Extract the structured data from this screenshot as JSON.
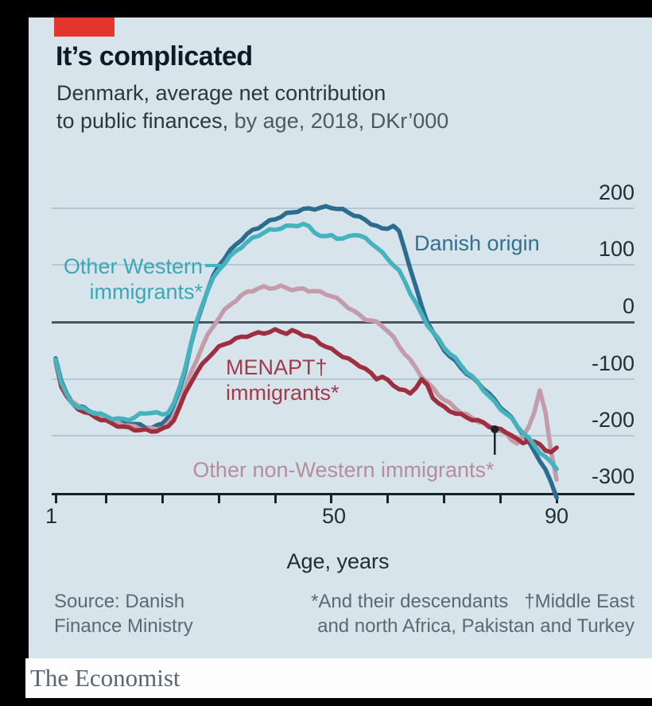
{
  "header": {
    "title": "It’s complicated",
    "subtitle_line1": "Denmark, average net contribution",
    "subtitle_line2_dark": "to public finances,",
    "subtitle_line2_light": " by age, 2018, DKr’000",
    "tag_color": "#e3352b"
  },
  "axis": {
    "y_labels": [
      "200",
      "100",
      "0",
      "-100",
      "-200",
      "-300"
    ],
    "x_labels": [
      "1",
      "50",
      "90"
    ],
    "x_axis_title": "Age, years"
  },
  "labels": {
    "danish": "Danish origin",
    "other_western_l1": "Other Western",
    "other_western_l2": "immigrants*",
    "menapt_l1": "MENAPT†",
    "menapt_l2": "immigrants*",
    "non_western": "Other non-Western immigrants*"
  },
  "footer": {
    "source_line1": "Source: Danish",
    "source_line2": "Finance Ministry",
    "footnote_line1": "*And their descendants   †Middle East",
    "footnote_line2": "and north Africa, Pakistan and Turkey",
    "brand": "The Economist"
  },
  "chart_data": {
    "type": "line",
    "title": "It's complicated",
    "subtitle": "Denmark, average net contribution to public finances, by age, 2018, DKr'000",
    "xlabel": "Age, years",
    "ylabel": "DKr'000",
    "xlim": [
      1,
      90
    ],
    "ylim": [
      -300,
      200
    ],
    "y_ticks": [
      200,
      100,
      0,
      -100,
      -200,
      -300
    ],
    "x_ticks": [
      1,
      10,
      20,
      30,
      40,
      50,
      60,
      70,
      80,
      90
    ],
    "x_tick_labeled": [
      1,
      50,
      90
    ],
    "grid": true,
    "x_start": 1,
    "x_step": 1,
    "series": [
      {
        "id": "danish-origin",
        "name": "Danish origin",
        "color": "#2c6d8f",
        "values": [
          -62,
          -105,
          -128,
          -140,
          -148,
          -152,
          -156,
          -160,
          -164,
          -168,
          -172,
          -174,
          -176,
          -178,
          -180,
          -182,
          -185,
          -186,
          -184,
          -178,
          -166,
          -148,
          -120,
          -85,
          -42,
          -5,
          28,
          56,
          80,
          100,
          113,
          125,
          136,
          146,
          154,
          161,
          167,
          172,
          177,
          182,
          186,
          190,
          193,
          196,
          198,
          199,
          200,
          201,
          202,
          202,
          200,
          197,
          193,
          189,
          184,
          179,
          174,
          169,
          163,
          166,
          170,
          158,
          128,
          95,
          60,
          28,
          2,
          -18,
          -34,
          -48,
          -60,
          -70,
          -80,
          -90,
          -99,
          -107,
          -116,
          -127,
          -138,
          -149,
          -159,
          -170,
          -183,
          -197,
          -212,
          -227,
          -243,
          -261,
          -283,
          -307
        ]
      },
      {
        "id": "other-non-western",
        "name": "Other non-Western immigrants*",
        "color": "#c49ba8",
        "values": [
          -68,
          -110,
          -129,
          -141,
          -149,
          -154,
          -158,
          -162,
          -166,
          -170,
          -174,
          -177,
          -180,
          -183,
          -185,
          -187,
          -188,
          -189,
          -188,
          -186,
          -180,
          -167,
          -144,
          -117,
          -91,
          -67,
          -44,
          -24,
          -7,
          8,
          20,
          30,
          39,
          46,
          52,
          56,
          59,
          61,
          60,
          61,
          62,
          60,
          58,
          57,
          58,
          56,
          54,
          52,
          50,
          46,
          40,
          34,
          26,
          18,
          12,
          6,
          2,
          -1,
          -6,
          -16,
          -28,
          -42,
          -55,
          -68,
          -81,
          -95,
          -107,
          -117,
          -127,
          -137,
          -144,
          -151,
          -159,
          -164,
          -169,
          -174,
          -179,
          -184,
          -189,
          -192,
          -198,
          -207,
          -213,
          -203,
          -185,
          -158,
          -122,
          -160,
          -225,
          -278
        ]
      },
      {
        "id": "menapt",
        "name": "MENAPT† immigrants*",
        "color": "#9e2f3e",
        "values": [
          -70,
          -112,
          -132,
          -145,
          -152,
          -158,
          -163,
          -167,
          -171,
          -175,
          -179,
          -182,
          -185,
          -187,
          -189,
          -190,
          -191,
          -192,
          -191,
          -189,
          -184,
          -171,
          -151,
          -127,
          -106,
          -90,
          -76,
          -63,
          -53,
          -45,
          -39,
          -34,
          -30,
          -27,
          -24,
          -22,
          -20,
          -19,
          -17,
          -15,
          -17,
          -19,
          -16,
          -19,
          -22,
          -26,
          -31,
          -37,
          -43,
          -49,
          -54,
          -60,
          -66,
          -71,
          -76,
          -83,
          -91,
          -99,
          -96,
          -104,
          -111,
          -117,
          -122,
          -126,
          -114,
          -102,
          -112,
          -132,
          -143,
          -151,
          -156,
          -160,
          -164,
          -168,
          -171,
          -174,
          -178,
          -183,
          -187,
          -190,
          -193,
          -199,
          -208,
          -213,
          -208,
          -212,
          -216,
          -224,
          -230,
          -223
        ]
      },
      {
        "id": "other-western",
        "name": "Other Western immigrants*",
        "color": "#46b2be",
        "values": [
          -65,
          -108,
          -130,
          -142,
          -150,
          -154,
          -157,
          -160,
          -163,
          -166,
          -169,
          -171,
          -172,
          -171,
          -168,
          -163,
          -160,
          -159,
          -161,
          -163,
          -158,
          -144,
          -116,
          -80,
          -40,
          -2,
          30,
          56,
          76,
          92,
          104,
          115,
          124,
          133,
          140,
          147,
          153,
          158,
          161,
          163,
          166,
          168,
          169,
          171,
          172,
          167,
          159,
          152,
          149,
          154,
          148,
          145,
          151,
          155,
          151,
          147,
          141,
          131,
          121,
          112,
          101,
          89,
          72,
          52,
          32,
          13,
          -4,
          -18,
          -31,
          -44,
          -55,
          -65,
          -76,
          -87,
          -97,
          -107,
          -119,
          -131,
          -142,
          -152,
          -161,
          -171,
          -183,
          -194,
          -205,
          -217,
          -228,
          -238,
          -248,
          -257
        ]
      }
    ],
    "annotation": {
      "series": "Other non-Western immigrants*",
      "age": 79,
      "value": -189,
      "style": "dot-with-pointer-line"
    }
  }
}
